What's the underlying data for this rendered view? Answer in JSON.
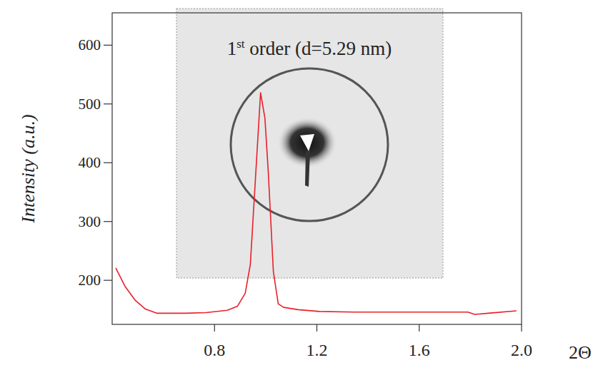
{
  "chart_data": {
    "type": "line",
    "annotation": "1st order (d=5.29 nm)",
    "x_label": "2Θ",
    "y_label": "Intensity (a.u.)",
    "x": [
      0.414,
      0.45,
      0.49,
      0.53,
      0.574,
      0.685,
      0.767,
      0.85,
      0.89,
      0.92,
      0.94,
      0.96,
      0.98,
      0.997,
      1.01,
      1.03,
      1.049,
      1.07,
      1.127,
      1.21,
      1.347,
      1.79,
      1.817,
      1.87,
      1.98
    ],
    "values": [
      221,
      190,
      166,
      151,
      144,
      144,
      145,
      149,
      156,
      178,
      227,
      373,
      519,
      476,
      385,
      215,
      160,
      154,
      150,
      147,
      146,
      146,
      142,
      144,
      148
    ],
    "color": "#e8202a",
    "xlim": [
      0.4,
      2.0
    ],
    "ylim": [
      125,
      655
    ],
    "xticks": [
      0.8,
      1.2,
      1.6,
      {
        "value": 2.0,
        "label": "2.0"
      }
    ],
    "yticks": [
      200,
      300,
      400,
      500,
      600
    ]
  }
}
